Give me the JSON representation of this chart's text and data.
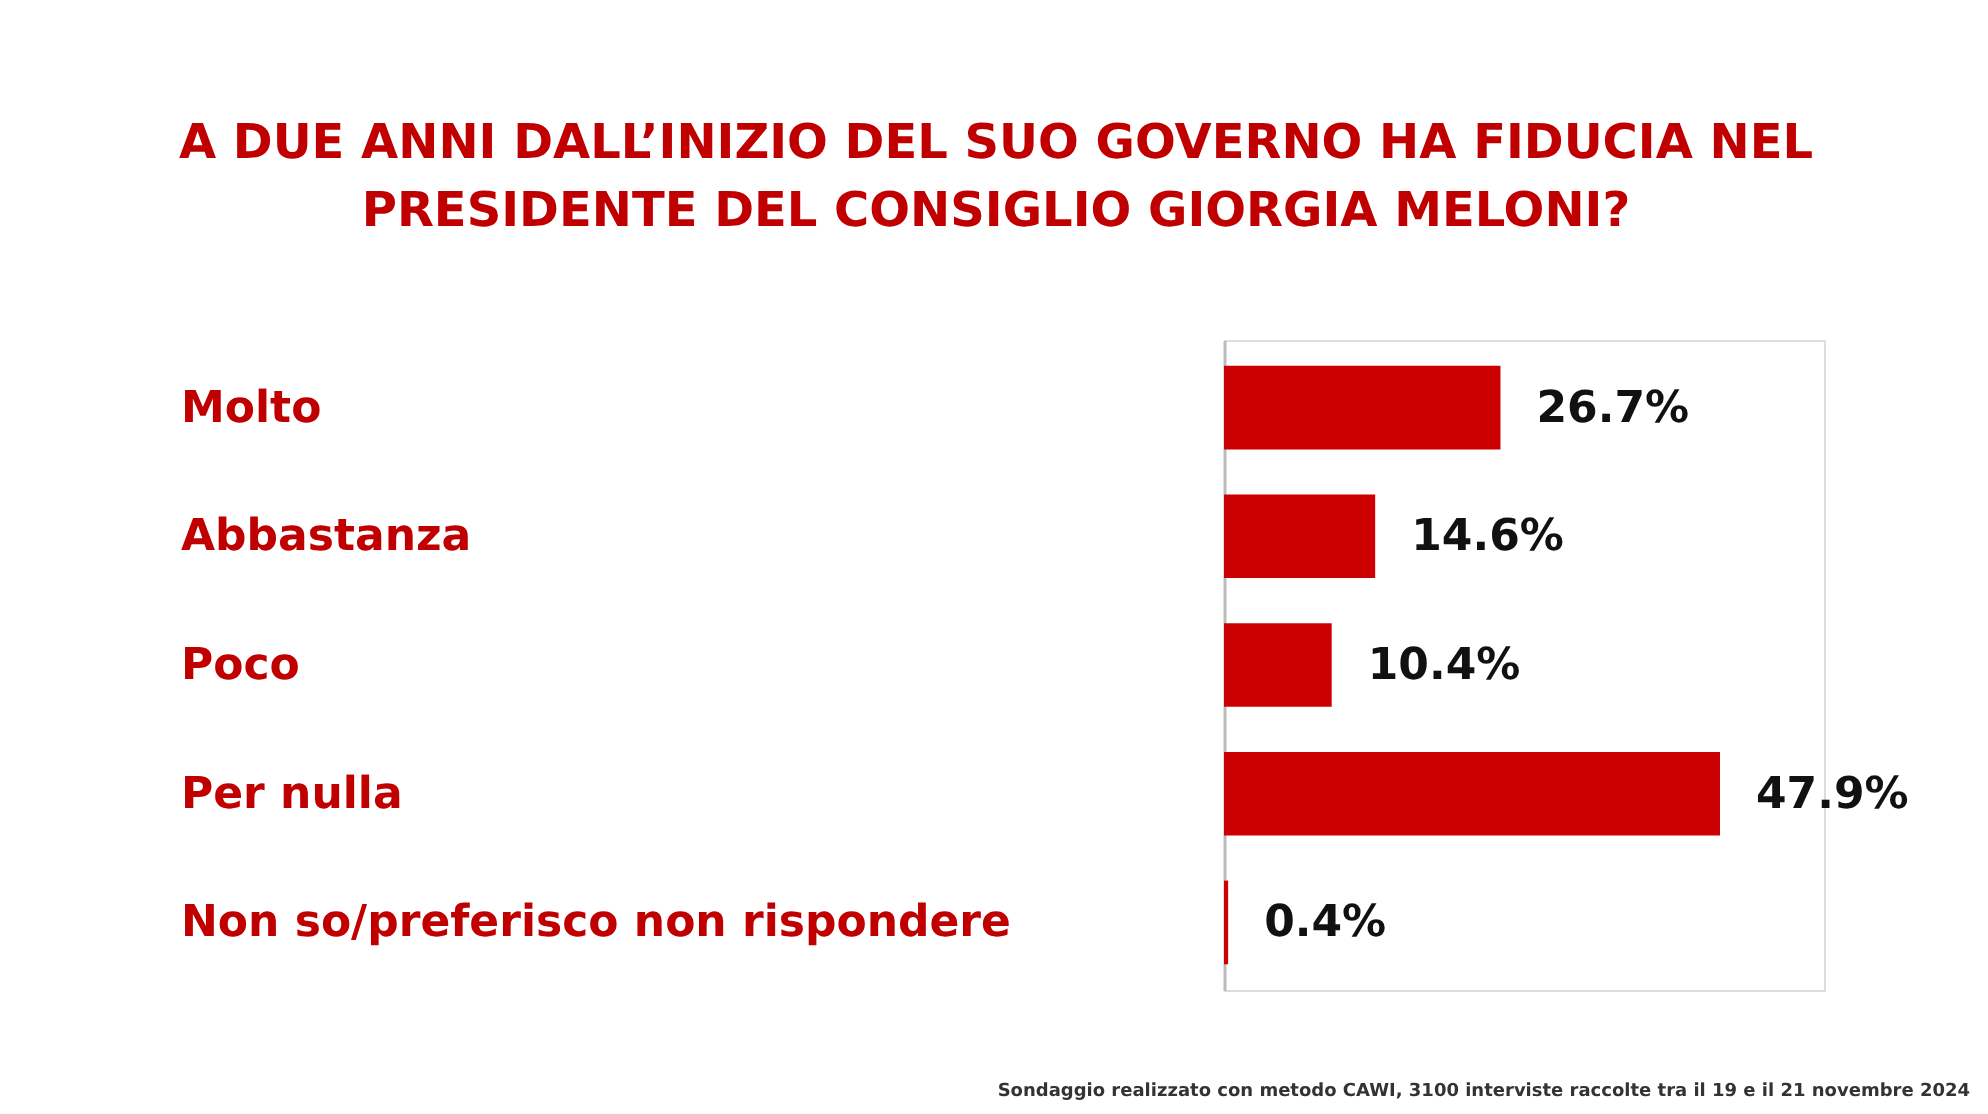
{
  "chart_data": {
    "type": "bar",
    "orientation": "horizontal",
    "title": "A DUE ANNI DALL’INIZIO DEL SUO GOVERNO HA FIDUCIA NEL\nPRESIDENTE DEL CONSIGLIO GIORGIA MELONI?",
    "categories": [
      "Molto",
      "Abbastanza",
      "Poco",
      "Per nulla",
      "Non so/preferisco non rispondere"
    ],
    "values": [
      26.7,
      14.6,
      10.4,
      47.9,
      0.4
    ],
    "value_labels": [
      "26.7%",
      "14.6%",
      "10.4%",
      "47.9%",
      "0.4%"
    ],
    "color": "#cc0000",
    "tick_labels": "y",
    "annotations": [
      "Sondaggio realizzato con metodo CAWI, 3100 interviste raccolte tra il 19 e il 21 novembre 2024"
    ]
  }
}
